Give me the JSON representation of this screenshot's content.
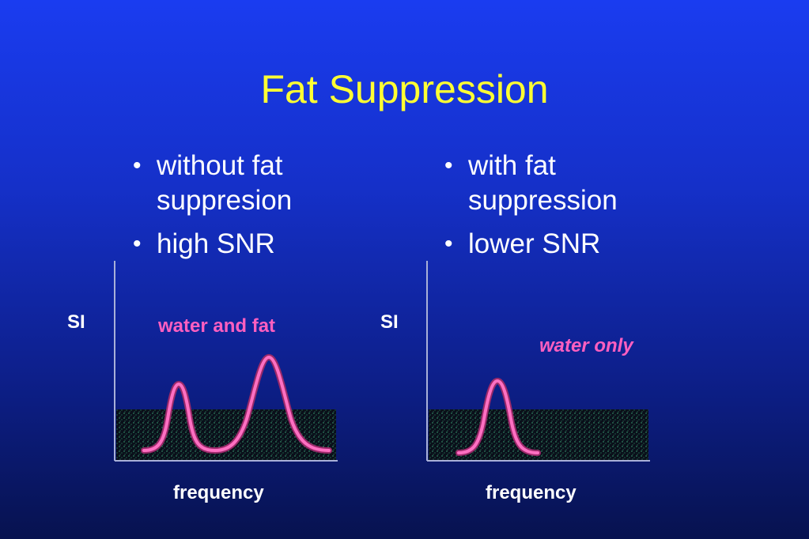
{
  "slide": {
    "title": "Fat Suppression",
    "colors": {
      "title": "#ffff33",
      "text": "#ffffff",
      "peak": "#ff5fc0",
      "background_top": "#1a3cf0",
      "background_bottom": "#07124f"
    }
  },
  "left": {
    "bullets": [
      "without fat suppresion",
      "high SNR"
    ],
    "y_label": "SI",
    "x_label": "frequency",
    "peak_label": "water and fat"
  },
  "right": {
    "bullets": [
      "with fat suppression",
      "lower SNR"
    ],
    "y_label": "SI",
    "x_label": "frequency",
    "peak_label": "water only"
  }
}
